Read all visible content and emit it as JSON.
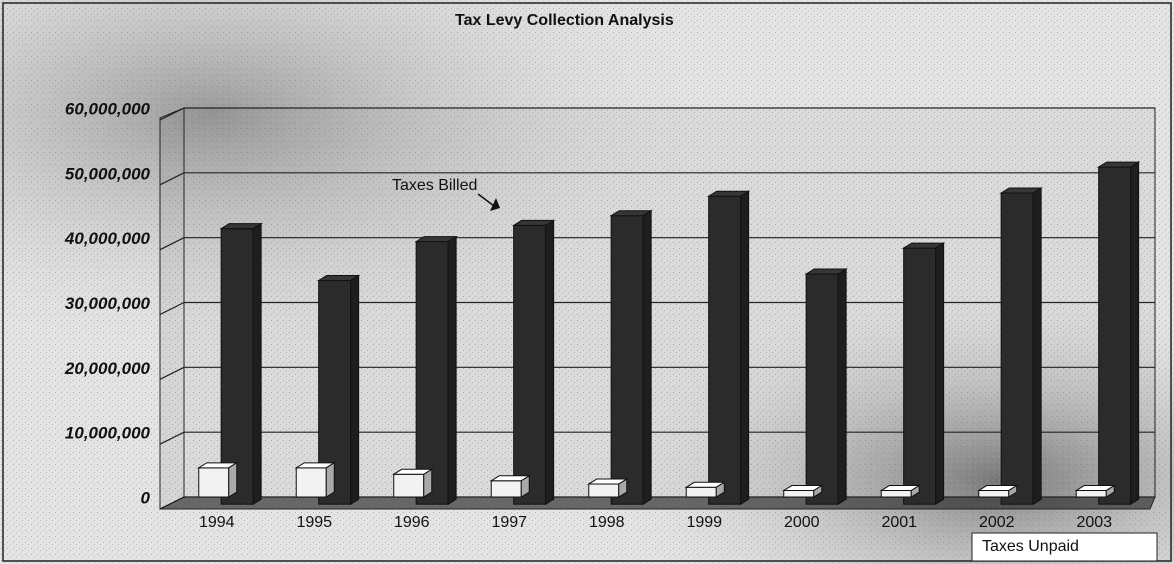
{
  "chart_data": {
    "type": "bar3d",
    "title": "Tax Levy Collection Analysis",
    "categories": [
      "1994",
      "1995",
      "1996",
      "1997",
      "1998",
      "1999",
      "2000",
      "2001",
      "2002",
      "2003"
    ],
    "series": [
      {
        "name": "Taxes Billed",
        "color": "#2b2b2b",
        "values": [
          42500000,
          34500000,
          40500000,
          43000000,
          44500000,
          47500000,
          35500000,
          39500000,
          48000000,
          52000000
        ]
      },
      {
        "name": "Taxes Unpaid",
        "color": "#f2f2f2",
        "values": [
          4500000,
          4500000,
          3500000,
          2500000,
          2000000,
          1500000,
          1000000,
          1000000,
          1000000,
          1000000
        ]
      }
    ],
    "ylim": [
      0,
      60000000
    ],
    "yticks": [
      0,
      {
        "value": 10000000,
        "label": "10,000,000"
      },
      {
        "value": 20000000,
        "label": "20,000,000"
      },
      {
        "value": 30000000,
        "label": "30,000,000"
      },
      {
        "value": 40000000,
        "label": "40,000,000"
      },
      {
        "value": 50000000,
        "label": "50,000,000"
      },
      {
        "value": 60000000,
        "label": "60,000,000"
      }
    ],
    "grid": true
  }
}
